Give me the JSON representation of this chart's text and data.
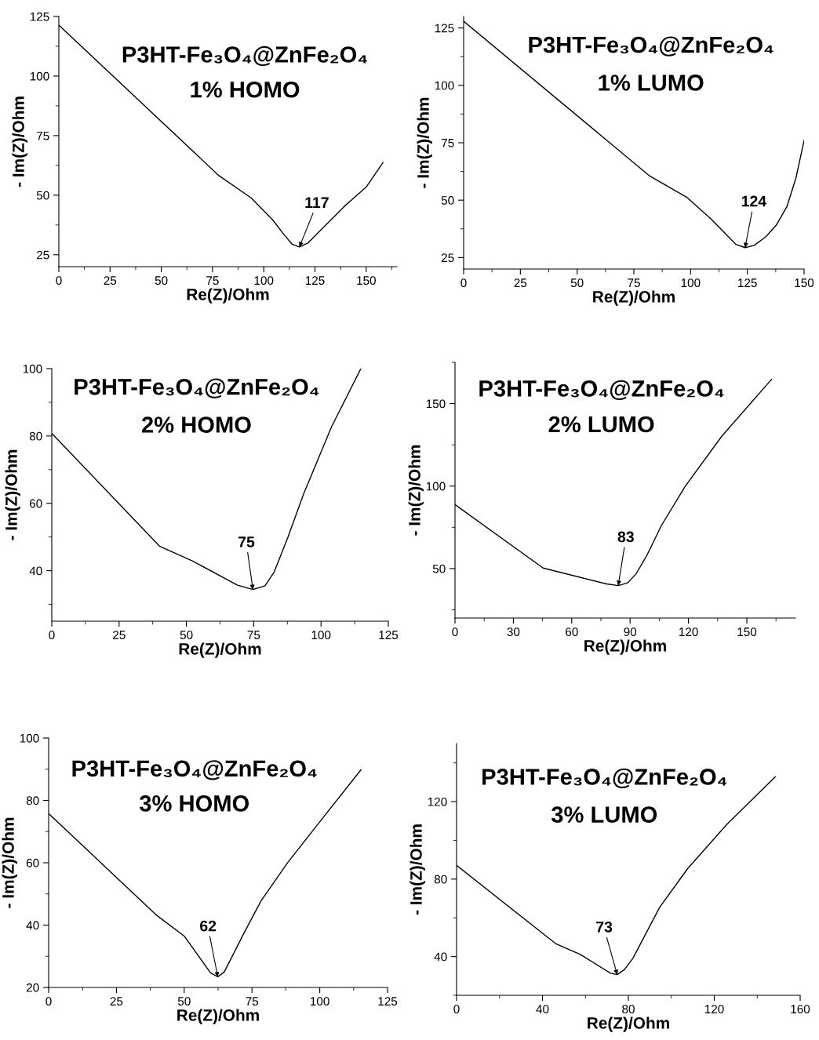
{
  "chart_data": [
    {
      "type": "line",
      "title": "P3HT-Fe₃O₄@ZnFe₂O₄",
      "subtitle": "1% HOMO",
      "xlabel": "Re(Z)/Ohm",
      "ylabel": "- Im(Z)/Ohm",
      "color": "#000000",
      "x": [
        0,
        78.1,
        93.8,
        104.4,
        110.1,
        113.9,
        117.4,
        121.5,
        130.4,
        139.3,
        150.1,
        158.2
      ],
      "values": [
        121.4,
        58.2,
        48.9,
        39.6,
        33.2,
        29.4,
        28.3,
        29.9,
        37.6,
        45.3,
        53.5,
        63.7
      ],
      "xlim": [
        0,
        165
      ],
      "ylim": [
        20,
        125
      ],
      "xticks": [
        0,
        25,
        50,
        75,
        100,
        125,
        150
      ],
      "yticks": [
        25,
        50,
        75,
        100,
        125
      ],
      "annotations": [
        {
          "text": "117",
          "x": 117.4,
          "y": 28.3
        }
      ]
    },
    {
      "type": "line",
      "title": "P3HT-Fe₃O₄@ZnFe₂O₄",
      "subtitle": "1% LUMO",
      "xlabel": "Re(Z)/Ohm",
      "ylabel": "- Im(Z)/Ohm",
      "color": "#000000",
      "x": [
        0,
        82.0,
        98.5,
        109.1,
        120.0,
        124.0,
        128.0,
        133.2,
        137.8,
        142.4,
        146.4,
        150.0
      ],
      "values": [
        127.9,
        60.5,
        51.1,
        41.7,
        30.7,
        29.3,
        30.3,
        34.1,
        39.2,
        47.1,
        59.6,
        76.0
      ],
      "xlim": [
        0,
        150
      ],
      "ylim": [
        20,
        130
      ],
      "xticks": [
        0,
        25,
        50,
        75,
        100,
        125,
        150
      ],
      "yticks": [
        25,
        50,
        75,
        100,
        125
      ],
      "annotations": [
        {
          "text": "124",
          "x": 124.0,
          "y": 29.3
        }
      ]
    },
    {
      "type": "line",
      "title": "P3HT-Fe₃O₄@ZnFe₂O₄",
      "subtitle": "2% HOMO",
      "xlabel": "Re(Z)/Ohm",
      "ylabel": "- Im(Z)/Ohm",
      "color": "#000000",
      "x": [
        0,
        40.0,
        52.2,
        69.0,
        74.7,
        79.2,
        82.6,
        87.6,
        93.4,
        103.9,
        114.8
      ],
      "values": [
        80.8,
        47.3,
        42.9,
        35.7,
        34.4,
        35.5,
        39.6,
        49.7,
        62.5,
        82.7,
        100
      ],
      "xlim": [
        0,
        125
      ],
      "ylim": [
        25,
        100
      ],
      "xticks": [
        0,
        25,
        50,
        75,
        100,
        125
      ],
      "yticks": [
        40,
        60,
        80,
        100
      ],
      "annotations": [
        {
          "text": "75",
          "x": 74.7,
          "y": 34.4
        }
      ]
    },
    {
      "type": "line",
      "title": "P3HT-Fe₃O₄@ZnFe₂O₄",
      "subtitle": "2% LUMO",
      "xlabel": "Re(Z)/Ohm",
      "ylabel": "- Im(Z)/Ohm",
      "color": "#000000",
      "x": [
        0,
        45.3,
        77.9,
        83.9,
        88.7,
        93.1,
        98.8,
        106.1,
        118.3,
        137.1,
        162.7
      ],
      "values": [
        88.8,
        50.3,
        40.7,
        39.7,
        41.3,
        46.8,
        58.4,
        76.1,
        99.8,
        130.2,
        164.7
      ],
      "xlim": [
        0,
        175
      ],
      "ylim": [
        20,
        175
      ],
      "xticks": [
        0,
        30,
        60,
        90,
        120,
        150
      ],
      "yticks": [
        50,
        100,
        150
      ],
      "annotations": [
        {
          "text": "83",
          "x": 83.9,
          "y": 39.7
        }
      ]
    },
    {
      "type": "line",
      "title": "P3HT-Fe₃O₄@ZnFe₂O₄",
      "subtitle": "3% HOMO",
      "xlabel": "Re(Z)/Ohm",
      "ylabel": "- Im(Z)/Ohm",
      "color": "#000000",
      "x": [
        0,
        39.9,
        50.1,
        59.7,
        62.4,
        64.8,
        71.8,
        78.3,
        88.2,
        101.7,
        115.2
      ],
      "values": [
        75.8,
        43.1,
        36.4,
        24.7,
        23.4,
        25.0,
        37.0,
        47.7,
        60.1,
        75.0,
        89.8
      ],
      "xlim": [
        0,
        125
      ],
      "ylim": [
        20,
        100
      ],
      "xticks": [
        0,
        25,
        50,
        75,
        100,
        125
      ],
      "yticks": [
        20,
        40,
        60,
        80,
        100
      ],
      "annotations": [
        {
          "text": "62",
          "x": 62.4,
          "y": 23.4
        }
      ]
    },
    {
      "type": "line",
      "title": "P3HT-Fe₃O₄@ZnFe₂O₄",
      "subtitle": "3% LUMO",
      "xlabel": "Re(Z)/Ohm",
      "ylabel": "- Im(Z)/Ohm",
      "color": "#000000",
      "x": [
        0,
        46.1,
        57.6,
        71.7,
        74.8,
        78.2,
        82.1,
        94.5,
        107.6,
        125.9,
        148.4
      ],
      "values": [
        87.1,
        46.7,
        41.1,
        31.4,
        30.7,
        33.3,
        39.1,
        65.3,
        85.4,
        108.3,
        132.8
      ],
      "xlim": [
        0,
        160
      ],
      "ylim": [
        20,
        150
      ],
      "xticks": [
        0,
        40,
        80,
        120,
        160
      ],
      "yticks": [
        40,
        80,
        120
      ],
      "annotations": [
        {
          "text": "73",
          "x": 74.8,
          "y": 30.7
        }
      ]
    }
  ]
}
